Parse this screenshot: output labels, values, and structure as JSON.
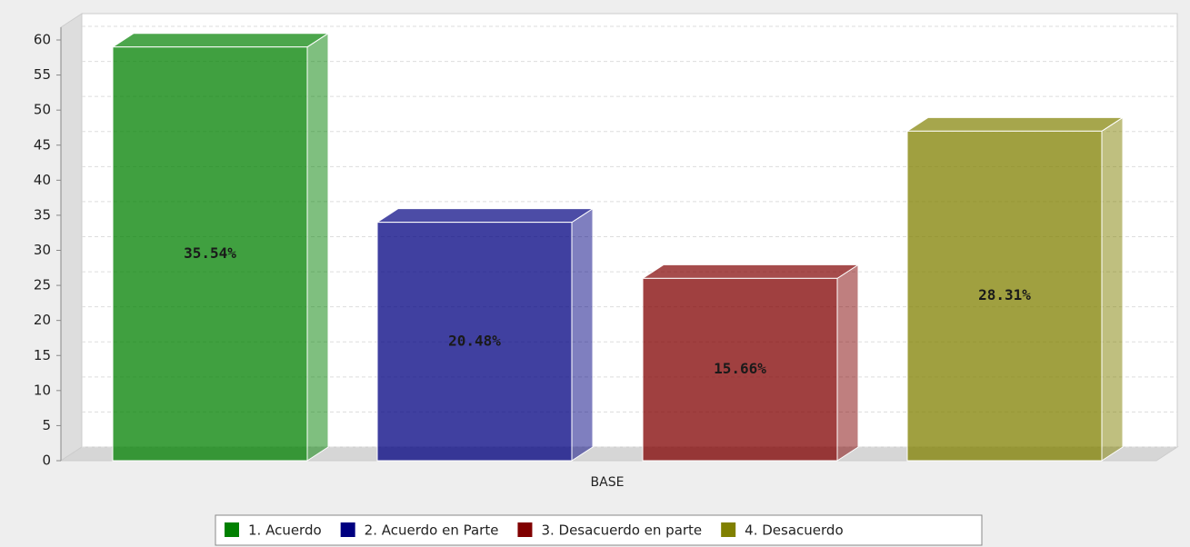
{
  "chart_data": {
    "type": "bar3d",
    "categories": [
      "BASE"
    ],
    "series": [
      {
        "name": "1. Acuerdo",
        "color": "#008000",
        "values": [
          59
        ]
      },
      {
        "name": "2. Acuerdo en Parte",
        "color": "#000080",
        "values": [
          34
        ]
      },
      {
        "name": "3. Desacuerdo en parte",
        "color": "#800000",
        "values": [
          26
        ]
      },
      {
        "name": "4. Desacuerdo",
        "color": "#808000",
        "values": [
          47
        ]
      }
    ],
    "bar_labels": [
      "35.54%",
      "20.48%",
      "15.66%",
      "28.31%"
    ],
    "ylim": [
      0,
      60
    ],
    "yticks": [
      0,
      5,
      10,
      15,
      20,
      25,
      30,
      35,
      40,
      45,
      50,
      55,
      60
    ],
    "grid": true,
    "legend": "bottom"
  }
}
